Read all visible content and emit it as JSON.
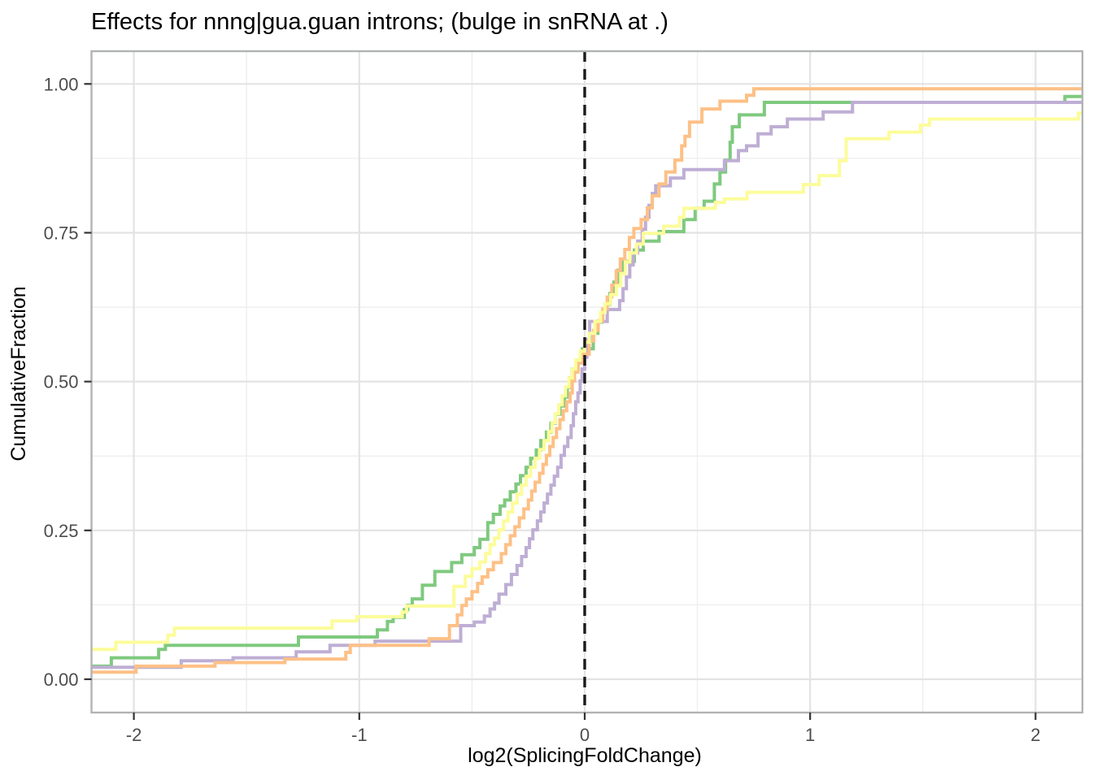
{
  "chart_data": {
    "type": "line",
    "subtype": "ecdf-step",
    "title": "Effects for nnng|gua.guan introns; (bulge in snRNA at .)",
    "xlabel": "log2(SplicingFoldChange)",
    "ylabel": "CumulativeFraction",
    "xlim": [
      -2.188,
      2.208
    ],
    "ylim": [
      -0.056,
      1.055
    ],
    "x_ticks": {
      "values": [
        -2,
        -1,
        0,
        1,
        2
      ],
      "labels": [
        "-2",
        "-1",
        "0",
        "1",
        "2"
      ]
    },
    "y_ticks": {
      "values": [
        0,
        0.25,
        0.5,
        0.75,
        1.0
      ],
      "labels": [
        "0.00",
        "0.25",
        "0.50",
        "0.75",
        "1.00"
      ]
    },
    "x_minor_ticks": [
      -1.5,
      -0.5,
      0.5,
      1.5
    ],
    "y_minor_ticks": [
      0.125,
      0.375,
      0.625,
      0.875
    ],
    "grid": true,
    "legend_position": "none",
    "reference_line": {
      "x": 0,
      "linetype": "dashed",
      "color": "#1A1A1A"
    },
    "series": [
      {
        "name": "green",
        "color": "#7FC97F",
        "points": [
          [
            -2.19,
            0.022
          ],
          [
            -2.1,
            0.036
          ],
          [
            -1.89,
            0.05
          ],
          [
            -1.86,
            0.057
          ],
          [
            -1.27,
            0.071
          ],
          [
            -0.92,
            0.083
          ],
          [
            -0.875,
            0.097
          ],
          [
            -0.85,
            0.104
          ],
          [
            -0.8,
            0.117
          ],
          [
            -0.785,
            0.124
          ],
          [
            -0.765,
            0.135
          ],
          [
            -0.72,
            0.158
          ],
          [
            -0.665,
            0.181
          ],
          [
            -0.59,
            0.196
          ],
          [
            -0.545,
            0.209
          ],
          [
            -0.49,
            0.221
          ],
          [
            -0.465,
            0.235
          ],
          [
            -0.43,
            0.263
          ],
          [
            -0.405,
            0.277
          ],
          [
            -0.375,
            0.291
          ],
          [
            -0.355,
            0.301
          ],
          [
            -0.33,
            0.315
          ],
          [
            -0.305,
            0.328
          ],
          [
            -0.285,
            0.342
          ],
          [
            -0.26,
            0.356
          ],
          [
            -0.24,
            0.371
          ],
          [
            -0.215,
            0.385
          ],
          [
            -0.195,
            0.401
          ],
          [
            -0.17,
            0.415
          ],
          [
            -0.15,
            0.43
          ],
          [
            -0.13,
            0.445
          ],
          [
            -0.11,
            0.459
          ],
          [
            -0.09,
            0.474
          ],
          [
            -0.078,
            0.49
          ],
          [
            -0.068,
            0.506
          ],
          [
            -0.055,
            0.521
          ],
          [
            -0.03,
            0.536
          ],
          [
            -0.01,
            0.555
          ],
          [
            0.038,
            0.581
          ],
          [
            0.058,
            0.6
          ],
          [
            0.076,
            0.616
          ],
          [
            0.094,
            0.63
          ],
          [
            0.112,
            0.648
          ],
          [
            0.13,
            0.667
          ],
          [
            0.148,
            0.687
          ],
          [
            0.172,
            0.702
          ],
          [
            0.22,
            0.721
          ],
          [
            0.26,
            0.736
          ],
          [
            0.33,
            0.752
          ],
          [
            0.44,
            0.772
          ],
          [
            0.49,
            0.791
          ],
          [
            0.53,
            0.803
          ],
          [
            0.575,
            0.832
          ],
          [
            0.6,
            0.852
          ],
          [
            0.625,
            0.872
          ],
          [
            0.645,
            0.902
          ],
          [
            0.655,
            0.928
          ],
          [
            0.686,
            0.948
          ],
          [
            0.797,
            0.969
          ],
          [
            2.13,
            0.979
          ]
        ]
      },
      {
        "name": "purple",
        "color": "#BEAED4",
        "points": [
          [
            -2.19,
            0.02
          ],
          [
            -1.79,
            0.031
          ],
          [
            -1.56,
            0.036
          ],
          [
            -1.28,
            0.046
          ],
          [
            -1.13,
            0.057
          ],
          [
            -0.93,
            0.064
          ],
          [
            -0.55,
            0.09
          ],
          [
            -0.49,
            0.096
          ],
          [
            -0.445,
            0.106
          ],
          [
            -0.42,
            0.118
          ],
          [
            -0.4,
            0.128
          ],
          [
            -0.38,
            0.143
          ],
          [
            -0.35,
            0.159
          ],
          [
            -0.325,
            0.176
          ],
          [
            -0.3,
            0.191
          ],
          [
            -0.28,
            0.206
          ],
          [
            -0.26,
            0.221
          ],
          [
            -0.245,
            0.236
          ],
          [
            -0.23,
            0.251
          ],
          [
            -0.21,
            0.266
          ],
          [
            -0.195,
            0.281
          ],
          [
            -0.18,
            0.296
          ],
          [
            -0.165,
            0.311
          ],
          [
            -0.15,
            0.326
          ],
          [
            -0.135,
            0.341
          ],
          [
            -0.12,
            0.356
          ],
          [
            -0.105,
            0.376
          ],
          [
            -0.09,
            0.391
          ],
          [
            -0.075,
            0.406
          ],
          [
            -0.06,
            0.426
          ],
          [
            -0.05,
            0.446
          ],
          [
            -0.04,
            0.466
          ],
          [
            -0.03,
            0.481
          ],
          [
            -0.02,
            0.501
          ],
          [
            -0.012,
            0.521
          ],
          [
            0.0,
            0.541
          ],
          [
            0.01,
            0.571
          ],
          [
            0.022,
            0.601
          ],
          [
            0.1,
            0.621
          ],
          [
            0.155,
            0.636
          ],
          [
            0.17,
            0.656
          ],
          [
            0.185,
            0.676
          ],
          [
            0.2,
            0.696
          ],
          [
            0.215,
            0.716
          ],
          [
            0.235,
            0.736
          ],
          [
            0.255,
            0.756
          ],
          [
            0.27,
            0.776
          ],
          [
            0.285,
            0.796
          ],
          [
            0.3,
            0.816
          ],
          [
            0.315,
            0.829
          ],
          [
            0.38,
            0.842
          ],
          [
            0.44,
            0.856
          ],
          [
            0.62,
            0.871
          ],
          [
            0.682,
            0.888
          ],
          [
            0.718,
            0.896
          ],
          [
            0.769,
            0.916
          ],
          [
            0.827,
            0.928
          ],
          [
            0.899,
            0.941
          ],
          [
            1.058,
            0.953
          ],
          [
            1.188,
            0.969
          ]
        ]
      },
      {
        "name": "orange",
        "color": "#FDC086",
        "points": [
          [
            -2.19,
            0.012
          ],
          [
            -1.99,
            0.022
          ],
          [
            -1.64,
            0.028
          ],
          [
            -1.33,
            0.034
          ],
          [
            -1.06,
            0.045
          ],
          [
            -1.04,
            0.057
          ],
          [
            -0.69,
            0.068
          ],
          [
            -0.6,
            0.09
          ],
          [
            -0.565,
            0.108
          ],
          [
            -0.545,
            0.124
          ],
          [
            -0.525,
            0.135
          ],
          [
            -0.5,
            0.147
          ],
          [
            -0.475,
            0.161
          ],
          [
            -0.455,
            0.172
          ],
          [
            -0.43,
            0.184
          ],
          [
            -0.405,
            0.196
          ],
          [
            -0.37,
            0.211
          ],
          [
            -0.35,
            0.226
          ],
          [
            -0.33,
            0.241
          ],
          [
            -0.31,
            0.256
          ],
          [
            -0.29,
            0.271
          ],
          [
            -0.27,
            0.286
          ],
          [
            -0.25,
            0.301
          ],
          [
            -0.235,
            0.316
          ],
          [
            -0.22,
            0.331
          ],
          [
            -0.2,
            0.346
          ],
          [
            -0.185,
            0.361
          ],
          [
            -0.17,
            0.376
          ],
          [
            -0.155,
            0.391
          ],
          [
            -0.14,
            0.406
          ],
          [
            -0.125,
            0.421
          ],
          [
            -0.11,
            0.436
          ],
          [
            -0.095,
            0.451
          ],
          [
            -0.08,
            0.466
          ],
          [
            -0.065,
            0.481
          ],
          [
            -0.055,
            0.501
          ],
          [
            -0.045,
            0.516
          ],
          [
            -0.03,
            0.531
          ],
          [
            -0.012,
            0.546
          ],
          [
            0.02,
            0.568
          ],
          [
            0.04,
            0.586
          ],
          [
            0.06,
            0.602
          ],
          [
            0.08,
            0.622
          ],
          [
            0.1,
            0.642
          ],
          [
            0.12,
            0.662
          ],
          [
            0.14,
            0.686
          ],
          [
            0.158,
            0.706
          ],
          [
            0.178,
            0.722
          ],
          [
            0.198,
            0.742
          ],
          [
            0.218,
            0.757
          ],
          [
            0.25,
            0.772
          ],
          [
            0.278,
            0.792
          ],
          [
            0.3,
            0.812
          ],
          [
            0.33,
            0.832
          ],
          [
            0.36,
            0.852
          ],
          [
            0.4,
            0.872
          ],
          [
            0.43,
            0.896
          ],
          [
            0.445,
            0.912
          ],
          [
            0.465,
            0.936
          ],
          [
            0.52,
            0.958
          ],
          [
            0.6,
            0.971
          ],
          [
            0.718,
            0.981
          ],
          [
            0.75,
            0.992
          ]
        ]
      },
      {
        "name": "yellow",
        "color": "#FCFC9B",
        "points": [
          [
            -2.19,
            0.05
          ],
          [
            -2.08,
            0.062
          ],
          [
            -1.85,
            0.074
          ],
          [
            -1.82,
            0.086
          ],
          [
            -1.12,
            0.098
          ],
          [
            -1.01,
            0.105
          ],
          [
            -0.81,
            0.113
          ],
          [
            -0.79,
            0.123
          ],
          [
            -0.58,
            0.156
          ],
          [
            -0.53,
            0.173
          ],
          [
            -0.5,
            0.186
          ],
          [
            -0.465,
            0.197
          ],
          [
            -0.44,
            0.211
          ],
          [
            -0.42,
            0.226
          ],
          [
            -0.4,
            0.237
          ],
          [
            -0.38,
            0.251
          ],
          [
            -0.36,
            0.266
          ],
          [
            -0.34,
            0.281
          ],
          [
            -0.32,
            0.296
          ],
          [
            -0.3,
            0.311
          ],
          [
            -0.28,
            0.326
          ],
          [
            -0.26,
            0.341
          ],
          [
            -0.24,
            0.356
          ],
          [
            -0.22,
            0.371
          ],
          [
            -0.2,
            0.386
          ],
          [
            -0.18,
            0.401
          ],
          [
            -0.16,
            0.416
          ],
          [
            -0.145,
            0.431
          ],
          [
            -0.13,
            0.446
          ],
          [
            -0.115,
            0.461
          ],
          [
            -0.1,
            0.476
          ],
          [
            -0.085,
            0.491
          ],
          [
            -0.07,
            0.506
          ],
          [
            -0.055,
            0.521
          ],
          [
            -0.04,
            0.536
          ],
          [
            -0.02,
            0.551
          ],
          [
            0.0,
            0.566
          ],
          [
            0.02,
            0.581
          ],
          [
            0.045,
            0.601
          ],
          [
            0.07,
            0.616
          ],
          [
            0.09,
            0.631
          ],
          [
            0.115,
            0.646
          ],
          [
            0.14,
            0.661
          ],
          [
            0.16,
            0.681
          ],
          [
            0.18,
            0.701
          ],
          [
            0.2,
            0.716
          ],
          [
            0.23,
            0.731
          ],
          [
            0.26,
            0.749
          ],
          [
            0.35,
            0.761
          ],
          [
            0.42,
            0.776
          ],
          [
            0.44,
            0.791
          ],
          [
            0.58,
            0.801
          ],
          [
            0.62,
            0.807
          ],
          [
            0.72,
            0.818
          ],
          [
            0.97,
            0.831
          ],
          [
            1.04,
            0.846
          ],
          [
            1.13,
            0.871
          ],
          [
            1.16,
            0.908
          ],
          [
            1.35,
            0.919
          ],
          [
            1.49,
            0.931
          ],
          [
            1.53,
            0.941
          ],
          [
            2.19,
            0.951
          ]
        ]
      }
    ]
  },
  "colors": {
    "background": "#FFFFFF",
    "panel_background": "#FFFFFF",
    "panel_border": "#B1B3B3",
    "grid_major": "#E3E3E3",
    "grid_minor": "#EDEDED",
    "tick_mark": "#333333",
    "tick_label": "#4D4D4D",
    "text": "#000000",
    "reference_line": "#1A1A1A"
  }
}
